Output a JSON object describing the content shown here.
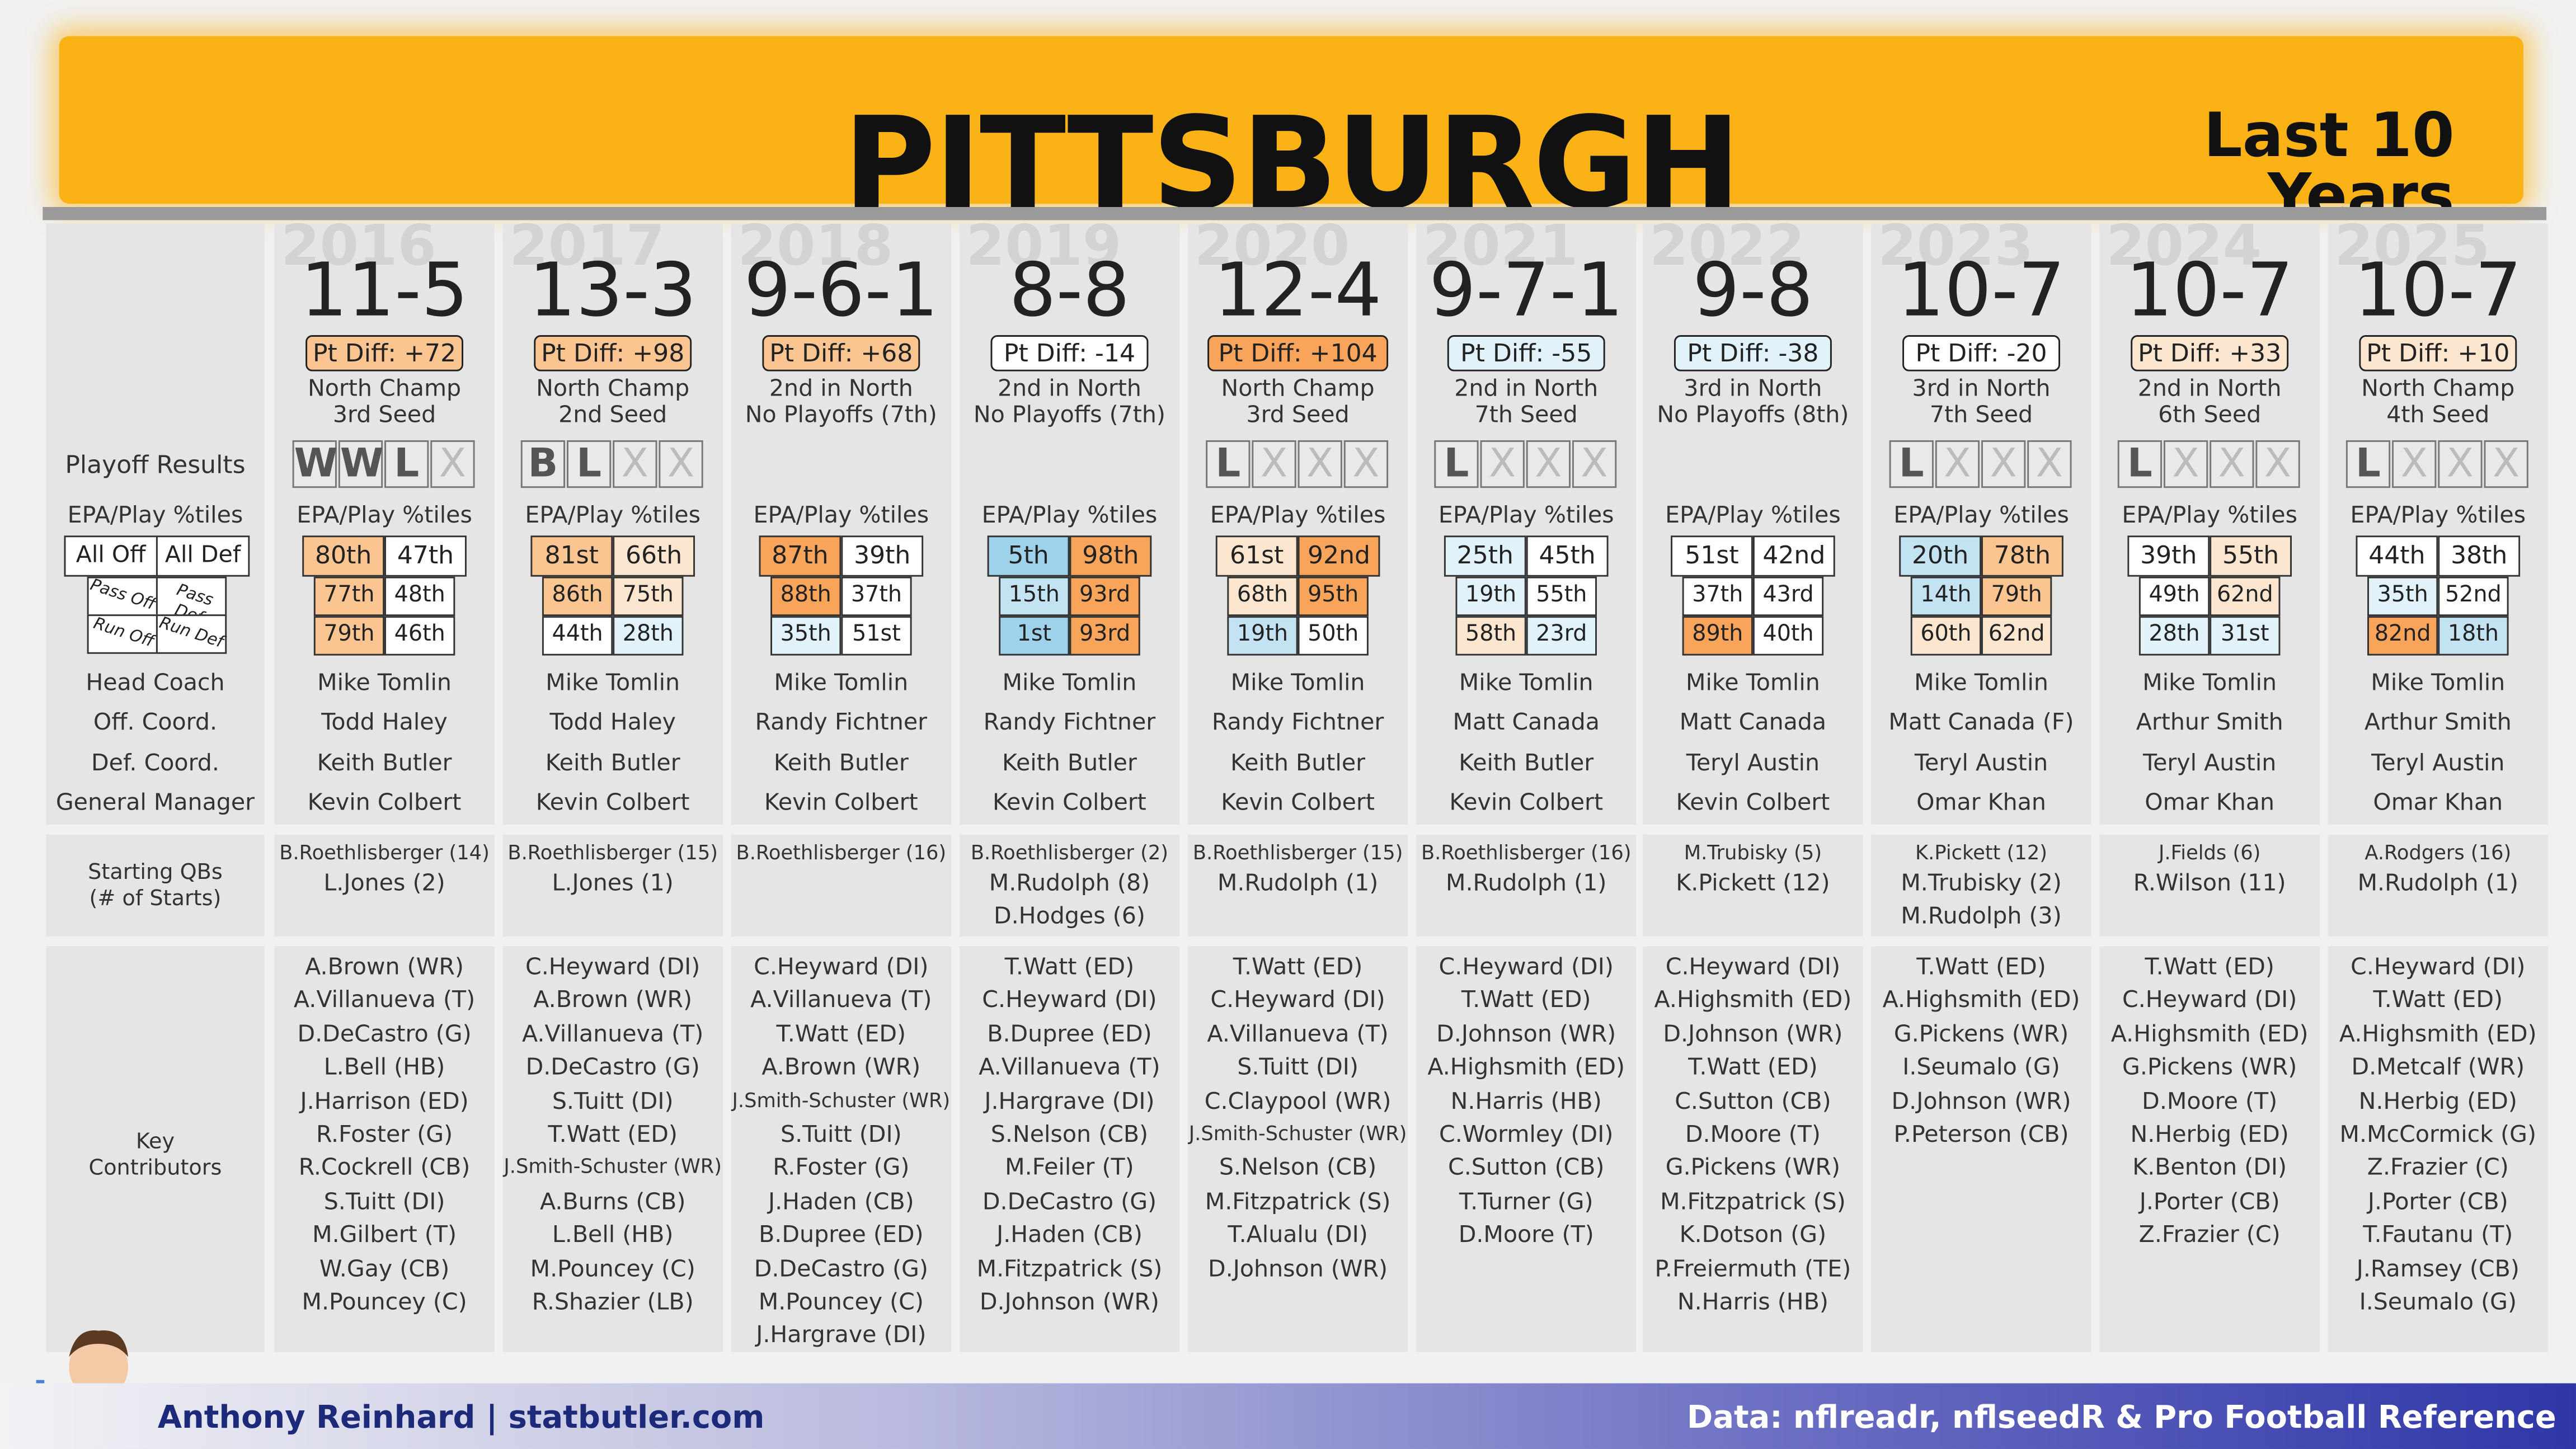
{
  "header": {
    "team": "PITTSBURGH",
    "span_line1": "Last 10",
    "span_line2": "Years"
  },
  "labels": {
    "playoff": "Playoff Results",
    "epa": "EPA/Play %tiles",
    "all_off": "All Off",
    "all_def": "All Def",
    "pass_off": "Pass Off",
    "pass_def": "Pass Def",
    "run_off": "Run Off",
    "run_def": "Run Def",
    "head_coach": "Head Coach",
    "off_coord": "Off. Coord.",
    "def_coord": "Def. Coord.",
    "gm": "General Manager",
    "qbs_1": "Starting QBs",
    "qbs_2": "(# of Starts)",
    "kc_1": "Key",
    "kc_2": "Contributors"
  },
  "colors": {
    "orange_dark": "#f8a45a",
    "orange_mid": "#fbc591",
    "orange_light": "#fde6cf",
    "blue_dark": "#9dd2ea",
    "blue_mid": "#c3e3f3",
    "blue_light": "#e1f2fa",
    "white": "#ffffff",
    "banner": "#fbb216"
  },
  "seasons": [
    {
      "year": "2016",
      "record": "11-5",
      "diff": "Pt Diff: +72",
      "diff_color": "#fbc591",
      "finish1": "North Champ",
      "finish2": "3rd Seed",
      "playoffs": [
        "W",
        "W",
        "L",
        "X"
      ],
      "epa": {
        "all_off": "80th",
        "all_def": "47th",
        "pass_off": "77th",
        "pass_def": "48th",
        "run_off": "79th",
        "run_def": "46th"
      },
      "epa_colors": {
        "all_off": "#fbc591",
        "all_def": "#ffffff",
        "pass_off": "#fbc591",
        "pass_def": "#ffffff",
        "run_off": "#fbc591",
        "run_def": "#ffffff"
      },
      "hc": "Mike Tomlin",
      "oc": "Todd Haley",
      "dc": "Keith Butler",
      "gm": "Kevin Colbert",
      "qbs": [
        "B.Roethlisberger (14)",
        "L.Jones (2)"
      ],
      "kc": [
        "A.Brown (WR)",
        "A.Villanueva (T)",
        "D.DeCastro (G)",
        "L.Bell (HB)",
        "J.Harrison (ED)",
        "R.Foster (G)",
        "R.Cockrell (CB)",
        "S.Tuitt (DI)",
        "M.Gilbert (T)",
        "W.Gay (CB)",
        "M.Pouncey (C)"
      ]
    },
    {
      "year": "2017",
      "record": "13-3",
      "diff": "Pt Diff: +98",
      "diff_color": "#fbc591",
      "finish1": "North Champ",
      "finish2": "2nd Seed",
      "playoffs": [
        "B",
        "L",
        "X",
        "X"
      ],
      "epa": {
        "all_off": "81st",
        "all_def": "66th",
        "pass_off": "86th",
        "pass_def": "75th",
        "run_off": "44th",
        "run_def": "28th"
      },
      "epa_colors": {
        "all_off": "#fbc591",
        "all_def": "#fde6cf",
        "pass_off": "#fbc591",
        "pass_def": "#fde6cf",
        "run_off": "#ffffff",
        "run_def": "#e1f2fa"
      },
      "hc": "Mike Tomlin",
      "oc": "Todd Haley",
      "dc": "Keith Butler",
      "gm": "Kevin Colbert",
      "qbs": [
        "B.Roethlisberger (15)",
        "L.Jones (1)"
      ],
      "kc": [
        "C.Heyward (DI)",
        "A.Brown (WR)",
        "A.Villanueva (T)",
        "D.DeCastro (G)",
        "S.Tuitt (DI)",
        "T.Watt (ED)",
        "J.Smith-Schuster (WR)",
        "A.Burns (CB)",
        "L.Bell (HB)",
        "M.Pouncey (C)",
        "R.Shazier (LB)"
      ]
    },
    {
      "year": "2018",
      "record": "9-6-1",
      "diff": "Pt Diff: +68",
      "diff_color": "#fbc591",
      "finish1": "2nd in North",
      "finish2": "No Playoffs (7th)",
      "playoffs": [],
      "epa": {
        "all_off": "87th",
        "all_def": "39th",
        "pass_off": "88th",
        "pass_def": "37th",
        "run_off": "35th",
        "run_def": "51st"
      },
      "epa_colors": {
        "all_off": "#f8a45a",
        "all_def": "#ffffff",
        "pass_off": "#f8a45a",
        "pass_def": "#ffffff",
        "run_off": "#e1f2fa",
        "run_def": "#ffffff"
      },
      "hc": "Mike Tomlin",
      "oc": "Randy Fichtner",
      "dc": "Keith Butler",
      "gm": "Kevin Colbert",
      "qbs": [
        "B.Roethlisberger (16)"
      ],
      "kc": [
        "C.Heyward (DI)",
        "A.Villanueva (T)",
        "T.Watt (ED)",
        "A.Brown (WR)",
        "J.Smith-Schuster (WR)",
        "S.Tuitt (DI)",
        "R.Foster (G)",
        "J.Haden (CB)",
        "B.Dupree (ED)",
        "D.DeCastro (G)",
        "M.Pouncey (C)",
        "J.Hargrave (DI)"
      ]
    },
    {
      "year": "2019",
      "record": "8-8",
      "diff": "Pt Diff: -14",
      "diff_color": "#ffffff",
      "finish1": "2nd in North",
      "finish2": "No Playoffs (7th)",
      "playoffs": [],
      "epa": {
        "all_off": "5th",
        "all_def": "98th",
        "pass_off": "15th",
        "pass_def": "93rd",
        "run_off": "1st",
        "run_def": "93rd"
      },
      "epa_colors": {
        "all_off": "#9dd2ea",
        "all_def": "#f8a45a",
        "pass_off": "#c3e3f3",
        "pass_def": "#f8a45a",
        "run_off": "#9dd2ea",
        "run_def": "#f8a45a"
      },
      "hc": "Mike Tomlin",
      "oc": "Randy Fichtner",
      "dc": "Keith Butler",
      "gm": "Kevin Colbert",
      "qbs": [
        "B.Roethlisberger (2)",
        "M.Rudolph (8)",
        "D.Hodges (6)"
      ],
      "kc": [
        "T.Watt (ED)",
        "C.Heyward (DI)",
        "B.Dupree (ED)",
        "A.Villanueva (T)",
        "J.Hargrave (DI)",
        "S.Nelson (CB)",
        "M.Feiler (T)",
        "D.DeCastro (G)",
        "J.Haden (CB)",
        "M.Fitzpatrick (S)",
        "D.Johnson (WR)"
      ]
    },
    {
      "year": "2020",
      "record": "12-4",
      "diff": "Pt Diff: +104",
      "diff_color": "#f8a45a",
      "finish1": "North Champ",
      "finish2": "3rd Seed",
      "playoffs": [
        "L",
        "X",
        "X",
        "X"
      ],
      "epa": {
        "all_off": "61st",
        "all_def": "92nd",
        "pass_off": "68th",
        "pass_def": "95th",
        "run_off": "19th",
        "run_def": "50th"
      },
      "epa_colors": {
        "all_off": "#fde6cf",
        "all_def": "#f8a45a",
        "pass_off": "#fde6cf",
        "pass_def": "#f8a45a",
        "run_off": "#c3e3f3",
        "run_def": "#ffffff"
      },
      "hc": "Mike Tomlin",
      "oc": "Randy Fichtner",
      "dc": "Keith Butler",
      "gm": "Kevin Colbert",
      "qbs": [
        "B.Roethlisberger (15)",
        "M.Rudolph (1)"
      ],
      "kc": [
        "T.Watt (ED)",
        "C.Heyward (DI)",
        "A.Villanueva (T)",
        "S.Tuitt (DI)",
        "C.Claypool (WR)",
        "J.Smith-Schuster (WR)",
        "S.Nelson (CB)",
        "M.Fitzpatrick (S)",
        "T.Alualu (DI)",
        "D.Johnson (WR)"
      ]
    },
    {
      "year": "2021",
      "record": "9-7-1",
      "diff": "Pt Diff: -55",
      "diff_color": "#e1f2fa",
      "finish1": "2nd in North",
      "finish2": "7th Seed",
      "playoffs": [
        "L",
        "X",
        "X",
        "X"
      ],
      "epa": {
        "all_off": "25th",
        "all_def": "45th",
        "pass_off": "19th",
        "pass_def": "55th",
        "run_off": "58th",
        "run_def": "23rd"
      },
      "epa_colors": {
        "all_off": "#e1f2fa",
        "all_def": "#ffffff",
        "pass_off": "#e1f2fa",
        "pass_def": "#ffffff",
        "run_off": "#fde6cf",
        "run_def": "#e1f2fa"
      },
      "hc": "Mike Tomlin",
      "oc": "Matt Canada",
      "dc": "Keith Butler",
      "gm": "Kevin Colbert",
      "qbs": [
        "B.Roethlisberger (16)",
        "M.Rudolph (1)"
      ],
      "kc": [
        "C.Heyward (DI)",
        "T.Watt (ED)",
        "D.Johnson (WR)",
        "A.Highsmith (ED)",
        "N.Harris (HB)",
        "C.Wormley (DI)",
        "C.Sutton (CB)",
        "T.Turner (G)",
        "D.Moore (T)"
      ]
    },
    {
      "year": "2022",
      "record": "9-8",
      "diff": "Pt Diff: -38",
      "diff_color": "#e1f2fa",
      "finish1": "3rd in North",
      "finish2": "No Playoffs (8th)",
      "playoffs": [],
      "epa": {
        "all_off": "51st",
        "all_def": "42nd",
        "pass_off": "37th",
        "pass_def": "43rd",
        "run_off": "89th",
        "run_def": "40th"
      },
      "epa_colors": {
        "all_off": "#ffffff",
        "all_def": "#ffffff",
        "pass_off": "#ffffff",
        "pass_def": "#ffffff",
        "run_off": "#f8a45a",
        "run_def": "#ffffff"
      },
      "hc": "Mike Tomlin",
      "oc": "Matt Canada",
      "dc": "Teryl Austin",
      "gm": "Kevin Colbert",
      "qbs": [
        "M.Trubisky (5)",
        "K.Pickett (12)"
      ],
      "kc": [
        "C.Heyward (DI)",
        "A.Highsmith (ED)",
        "D.Johnson (WR)",
        "T.Watt (ED)",
        "C.Sutton (CB)",
        "D.Moore (T)",
        "G.Pickens (WR)",
        "M.Fitzpatrick (S)",
        "K.Dotson (G)",
        "P.Freiermuth (TE)",
        "N.Harris (HB)"
      ]
    },
    {
      "year": "2023",
      "record": "10-7",
      "diff": "Pt Diff: -20",
      "diff_color": "#ffffff",
      "finish1": "3rd in North",
      "finish2": "7th Seed",
      "playoffs": [
        "L",
        "X",
        "X",
        "X"
      ],
      "epa": {
        "all_off": "20th",
        "all_def": "78th",
        "pass_off": "14th",
        "pass_def": "79th",
        "run_off": "60th",
        "run_def": "62nd"
      },
      "epa_colors": {
        "all_off": "#c3e3f3",
        "all_def": "#fbc591",
        "pass_off": "#c3e3f3",
        "pass_def": "#fbc591",
        "run_off": "#fde6cf",
        "run_def": "#fde6cf"
      },
      "hc": "Mike Tomlin",
      "oc": "Matt Canada (F)",
      "dc": "Teryl Austin",
      "gm": "Omar Khan",
      "qbs": [
        "K.Pickett (12)",
        "M.Trubisky (2)",
        "M.Rudolph (3)"
      ],
      "kc": [
        "T.Watt (ED)",
        "A.Highsmith (ED)",
        "G.Pickens (WR)",
        "I.Seumalo (G)",
        "D.Johnson (WR)",
        "P.Peterson (CB)"
      ]
    },
    {
      "year": "2024",
      "record": "10-7",
      "diff": "Pt Diff: +33",
      "diff_color": "#fde6cf",
      "finish1": "2nd in North",
      "finish2": "6th Seed",
      "playoffs": [
        "L",
        "X",
        "X",
        "X"
      ],
      "epa": {
        "all_off": "39th",
        "all_def": "55th",
        "pass_off": "49th",
        "pass_def": "62nd",
        "run_off": "28th",
        "run_def": "31st"
      },
      "epa_colors": {
        "all_off": "#ffffff",
        "all_def": "#fde6cf",
        "pass_off": "#ffffff",
        "pass_def": "#fde6cf",
        "run_off": "#e1f2fa",
        "run_def": "#e1f2fa"
      },
      "hc": "Mike Tomlin",
      "oc": "Arthur Smith",
      "dc": "Teryl Austin",
      "gm": "Omar Khan",
      "qbs": [
        "J.Fields (6)",
        "R.Wilson (11)"
      ],
      "kc": [
        "T.Watt (ED)",
        "C.Heyward (DI)",
        "A.Highsmith (ED)",
        "G.Pickens (WR)",
        "D.Moore (T)",
        "N.Herbig (ED)",
        "K.Benton (DI)",
        "J.Porter (CB)",
        "Z.Frazier (C)"
      ]
    },
    {
      "year": "2025",
      "record": "10-7",
      "diff": "Pt Diff: +10",
      "diff_color": "#fde6cf",
      "finish1": "North Champ",
      "finish2": "4th Seed",
      "playoffs": [
        "L",
        "X",
        "X",
        "X"
      ],
      "epa": {
        "all_off": "44th",
        "all_def": "38th",
        "pass_off": "35th",
        "pass_def": "52nd",
        "run_off": "82nd",
        "run_def": "18th"
      },
      "epa_colors": {
        "all_off": "#ffffff",
        "all_def": "#ffffff",
        "pass_off": "#e1f2fa",
        "pass_def": "#ffffff",
        "run_off": "#f8a45a",
        "run_def": "#c3e3f3"
      },
      "hc": "Mike Tomlin",
      "oc": "Arthur Smith",
      "dc": "Teryl Austin",
      "gm": "Omar Khan",
      "qbs": [
        "A.Rodgers (16)",
        "M.Rudolph (1)"
      ],
      "kc": [
        "C.Heyward (DI)",
        "T.Watt (ED)",
        "A.Highsmith (ED)",
        "D.Metcalf (WR)",
        "N.Herbig (ED)",
        "M.McCormick (G)",
        "Z.Frazier (C)",
        "J.Porter (CB)",
        "T.Fautanu (T)",
        "J.Ramsey (CB)",
        "I.Seumalo (G)"
      ]
    }
  ],
  "footer": {
    "author": "Anthony Reinhard  |  statbutler.com",
    "source": "Data: nflreadr, nflseedR & Pro Football Reference"
  }
}
